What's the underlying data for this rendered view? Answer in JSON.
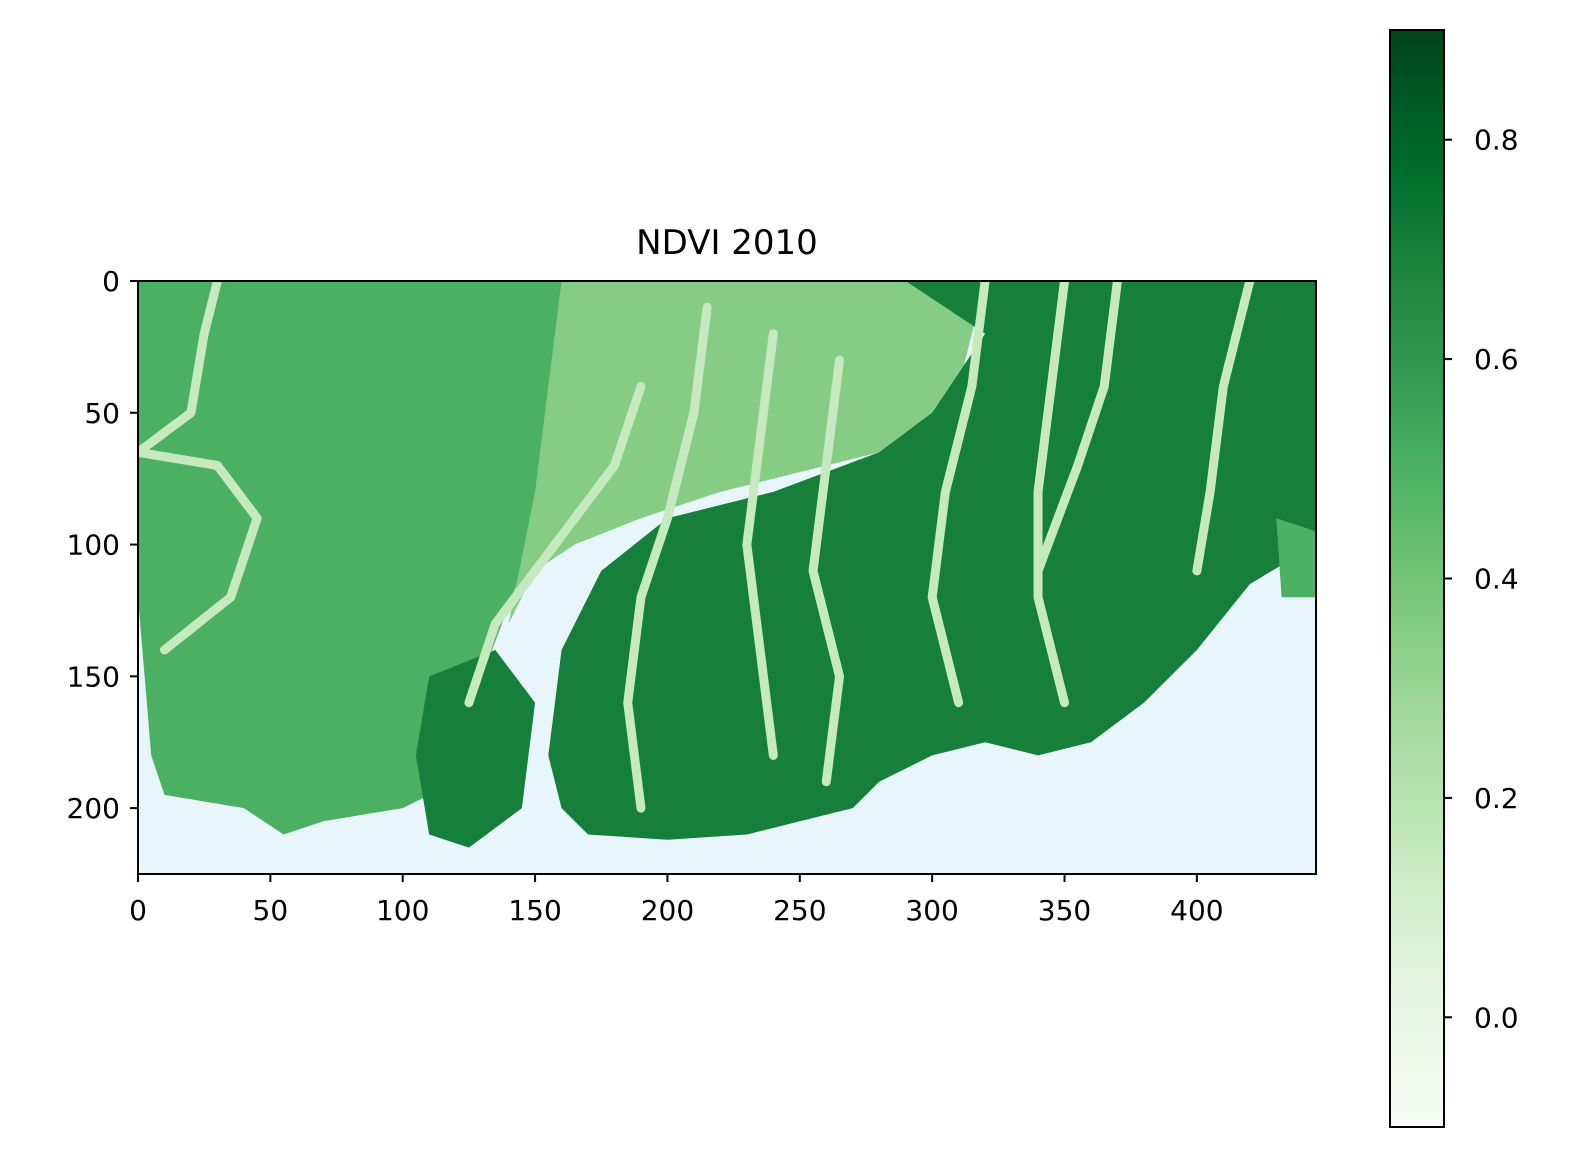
{
  "chart_data": {
    "type": "heatmap",
    "title": "NDVI 2010",
    "xlabel": "",
    "ylabel": "",
    "x_range": [
      0,
      445
    ],
    "y_range": [
      0,
      225
    ],
    "y_inverted": true,
    "x_ticks": [
      "0",
      "50",
      "100",
      "150",
      "200",
      "250",
      "300",
      "350",
      "400"
    ],
    "y_ticks": [
      "0",
      "50",
      "100",
      "150",
      "200"
    ],
    "colormap": "Greens",
    "colorbar": {
      "range": [
        -0.1,
        0.9
      ],
      "ticks": [
        "0.0",
        "0.2",
        "0.4",
        "0.6",
        "0.8"
      ],
      "colors": [
        "#f7fcf5",
        "#e5f5e0",
        "#c7e9c0",
        "#a1d99b",
        "#74c476",
        "#41ab5d",
        "#238b45",
        "#006d2c",
        "#00441b"
      ]
    },
    "grid": false,
    "regions": {
      "water_value": -0.05,
      "land_low_value": 0.35,
      "land_mid_value": 0.5,
      "land_high_value": 0.7,
      "channel_value": 0.15
    }
  }
}
